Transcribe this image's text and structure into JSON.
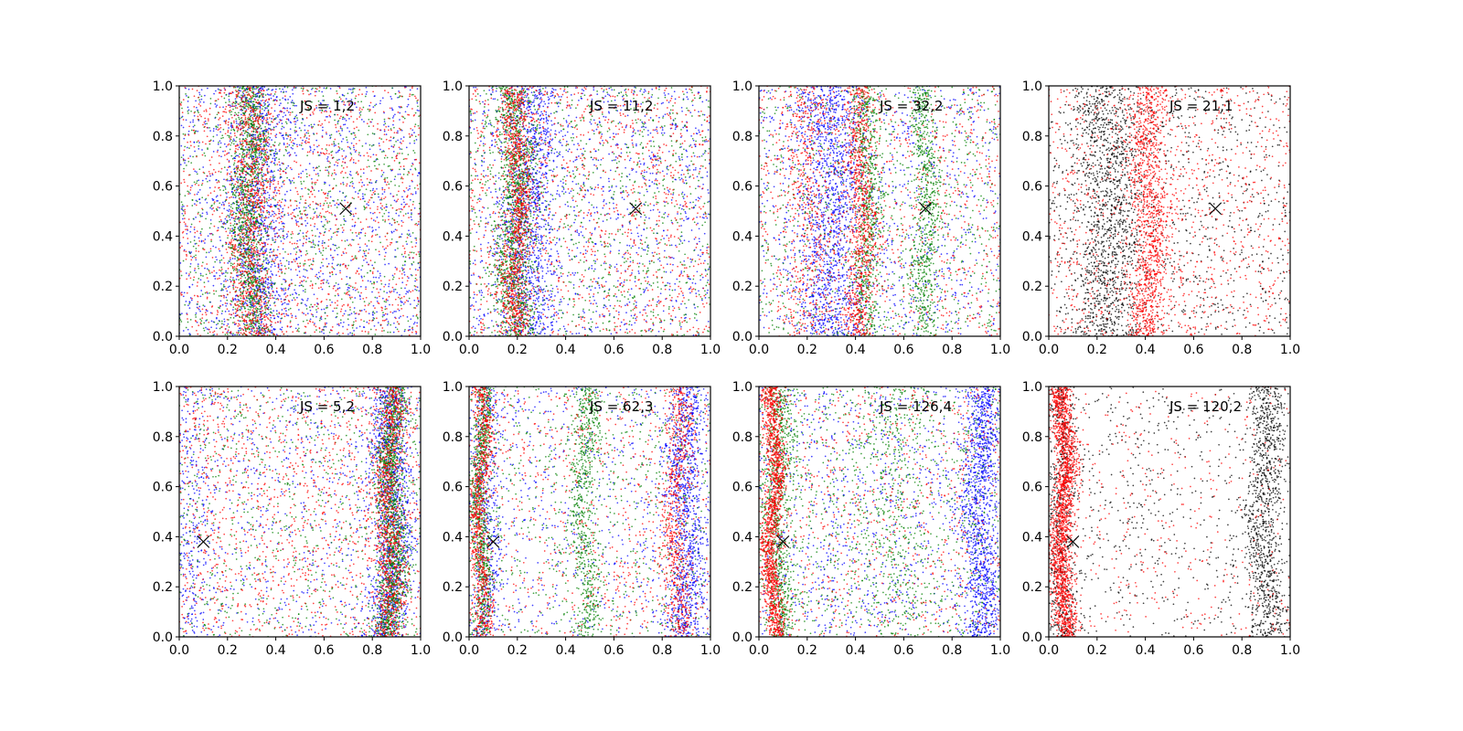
{
  "figure": {
    "background": "#ffffff",
    "rows": 2,
    "cols": 4
  },
  "chart_data": [
    {
      "type": "scatter",
      "annotation": "JS = 1,2",
      "xlim": [
        0,
        1
      ],
      "ylim": [
        0,
        1
      ],
      "xticks": [
        "0.0",
        "0.2",
        "0.4",
        "0.6",
        "0.8",
        "1.0"
      ],
      "yticks": [
        "0.0",
        "0.2",
        "0.4",
        "0.6",
        "0.8",
        "1.0"
      ],
      "grid": false,
      "marker": {
        "x": 0.69,
        "y": 0.51,
        "symbol": "x",
        "color": "#000000"
      },
      "series": [
        {
          "color": "#0000ff",
          "bands": [
            [
              0.32,
              0.07,
              0.45
            ]
          ],
          "background_fraction": 0.3
        },
        {
          "color": "#008000",
          "bands": [
            [
              0.29,
              0.04,
              0.55
            ]
          ],
          "background_fraction": 0.3
        },
        {
          "color": "#ff0000",
          "bands": [
            [
              0.3,
              0.05,
              0.4
            ]
          ],
          "background_fraction": 0.45
        }
      ]
    },
    {
      "type": "scatter",
      "annotation": "JS = 11,2",
      "xlim": [
        0,
        1
      ],
      "ylim": [
        0,
        1
      ],
      "xticks": [
        "0.0",
        "0.2",
        "0.4",
        "0.6",
        "0.8",
        "1.0"
      ],
      "yticks": [
        "0.0",
        "0.2",
        "0.4",
        "0.6",
        "0.8",
        "1.0"
      ],
      "grid": false,
      "marker": {
        "x": 0.69,
        "y": 0.51,
        "symbol": "x",
        "color": "#000000"
      },
      "series": [
        {
          "color": "#0000ff",
          "bands": [
            [
              0.25,
              0.06,
              0.5
            ]
          ],
          "background_fraction": 0.28
        },
        {
          "color": "#008000",
          "bands": [
            [
              0.19,
              0.04,
              0.55
            ]
          ],
          "background_fraction": 0.3
        },
        {
          "color": "#ff0000",
          "bands": [
            [
              0.2,
              0.03,
              0.45
            ]
          ],
          "background_fraction": 0.45
        }
      ]
    },
    {
      "type": "scatter",
      "annotation": "JS = 32,2",
      "xlim": [
        0,
        1
      ],
      "ylim": [
        0,
        1
      ],
      "xticks": [
        "0.0",
        "0.2",
        "0.4",
        "0.6",
        "0.8",
        "1.0"
      ],
      "yticks": [
        "0.0",
        "0.2",
        "0.4",
        "0.6",
        "0.8",
        "1.0"
      ],
      "grid": false,
      "marker": {
        "x": 0.69,
        "y": 0.51,
        "symbol": "x",
        "color": "#000000"
      },
      "series": [
        {
          "color": "#0000ff",
          "bands": [
            [
              0.3,
              0.07,
              0.55
            ]
          ],
          "background_fraction": 0.25
        },
        {
          "color": "#008000",
          "bands": [
            [
              0.45,
              0.03,
              0.3
            ],
            [
              0.69,
              0.03,
              0.3
            ]
          ],
          "background_fraction": 0.35
        },
        {
          "color": "#ff0000",
          "bands": [
            [
              0.42,
              0.03,
              0.35
            ],
            [
              0.2,
              0.05,
              0.2
            ]
          ],
          "background_fraction": 0.4
        }
      ]
    },
    {
      "type": "scatter",
      "annotation": "JS = 21,1",
      "xlim": [
        0,
        1
      ],
      "ylim": [
        0,
        1
      ],
      "xticks": [
        "0.0",
        "0.2",
        "0.4",
        "0.6",
        "0.8",
        "1.0"
      ],
      "yticks": [
        "0.0",
        "0.2",
        "0.4",
        "0.6",
        "0.8",
        "1.0"
      ],
      "grid": false,
      "marker": {
        "x": 0.69,
        "y": 0.51,
        "symbol": "x",
        "color": "#000000"
      },
      "series": [
        {
          "color": "#000000",
          "bands": [
            [
              0.25,
              0.07,
              0.55
            ]
          ],
          "background_fraction": 0.3
        },
        {
          "color": "#ff0000",
          "bands": [
            [
              0.42,
              0.04,
              0.5
            ]
          ],
          "background_fraction": 0.45
        }
      ]
    },
    {
      "type": "scatter",
      "annotation": "JS = 5,2",
      "xlim": [
        0,
        1
      ],
      "ylim": [
        0,
        1
      ],
      "xticks": [
        "0.0",
        "0.2",
        "0.4",
        "0.6",
        "0.8",
        "1.0"
      ],
      "yticks": [
        "0.0",
        "0.2",
        "0.4",
        "0.6",
        "0.8",
        "1.0"
      ],
      "grid": false,
      "marker": {
        "x": 0.1,
        "y": 0.38,
        "symbol": "x",
        "color": "#000000"
      },
      "series": [
        {
          "color": "#0000ff",
          "bands": [
            [
              0.88,
              0.04,
              0.55
            ],
            [
              0.05,
              0.04,
              0.1
            ]
          ],
          "background_fraction": 0.3
        },
        {
          "color": "#008000",
          "bands": [
            [
              0.88,
              0.03,
              0.65
            ]
          ],
          "background_fraction": 0.25
        },
        {
          "color": "#ff0000",
          "bands": [
            [
              0.87,
              0.03,
              0.4
            ]
          ],
          "background_fraction": 0.45
        }
      ]
    },
    {
      "type": "scatter",
      "annotation": "JS = 62,3",
      "xlim": [
        0,
        1
      ],
      "ylim": [
        0,
        1
      ],
      "xticks": [
        "0.0",
        "0.2",
        "0.4",
        "0.6",
        "0.8",
        "1.0"
      ],
      "yticks": [
        "0.0",
        "0.2",
        "0.4",
        "0.6",
        "0.8",
        "1.0"
      ],
      "grid": false,
      "marker": {
        "x": 0.1,
        "y": 0.38,
        "symbol": "x",
        "color": "#000000"
      },
      "series": [
        {
          "color": "#0000ff",
          "bands": [
            [
              0.9,
              0.04,
              0.5
            ],
            [
              0.07,
              0.03,
              0.2
            ]
          ],
          "background_fraction": 0.25
        },
        {
          "color": "#008000",
          "bands": [
            [
              0.05,
              0.02,
              0.35
            ],
            [
              0.48,
              0.03,
              0.3
            ]
          ],
          "background_fraction": 0.3
        },
        {
          "color": "#ff0000",
          "bands": [
            [
              0.05,
              0.02,
              0.35
            ],
            [
              0.86,
              0.03,
              0.3
            ]
          ],
          "background_fraction": 0.3
        }
      ]
    },
    {
      "type": "scatter",
      "annotation": "JS = 126,4",
      "xlim": [
        0,
        1
      ],
      "ylim": [
        0,
        1
      ],
      "xticks": [
        "0.0",
        "0.2",
        "0.4",
        "0.6",
        "0.8",
        "1.0"
      ],
      "yticks": [
        "0.0",
        "0.2",
        "0.4",
        "0.6",
        "0.8",
        "1.0"
      ],
      "grid": false,
      "marker": {
        "x": 0.1,
        "y": 0.38,
        "symbol": "x",
        "color": "#000000"
      },
      "series": [
        {
          "color": "#0000ff",
          "bands": [
            [
              0.92,
              0.04,
              0.55
            ]
          ],
          "background_fraction": 0.35
        },
        {
          "color": "#008000",
          "bands": [
            [
              0.08,
              0.03,
              0.35
            ],
            [
              0.55,
              0.08,
              0.15
            ]
          ],
          "background_fraction": 0.4
        },
        {
          "color": "#ff0000",
          "bands": [
            [
              0.06,
              0.02,
              0.65
            ]
          ],
          "background_fraction": 0.25
        }
      ]
    },
    {
      "type": "scatter",
      "annotation": "JS = 120,2",
      "xlim": [
        0,
        1
      ],
      "ylim": [
        0,
        1
      ],
      "xticks": [
        "0.0",
        "0.2",
        "0.4",
        "0.6",
        "0.8",
        "1.0"
      ],
      "yticks": [
        "0.0",
        "0.2",
        "0.4",
        "0.6",
        "0.8",
        "1.0"
      ],
      "grid": false,
      "marker": {
        "x": 0.1,
        "y": 0.38,
        "symbol": "x",
        "color": "#000000"
      },
      "series": [
        {
          "color": "#000000",
          "bands": [
            [
              0.9,
              0.04,
              0.45
            ],
            [
              0.05,
              0.03,
              0.25
            ]
          ],
          "background_fraction": 0.4
        },
        {
          "color": "#ff0000",
          "bands": [
            [
              0.06,
              0.025,
              0.8
            ]
          ],
          "background_fraction": 0.18
        }
      ]
    }
  ]
}
